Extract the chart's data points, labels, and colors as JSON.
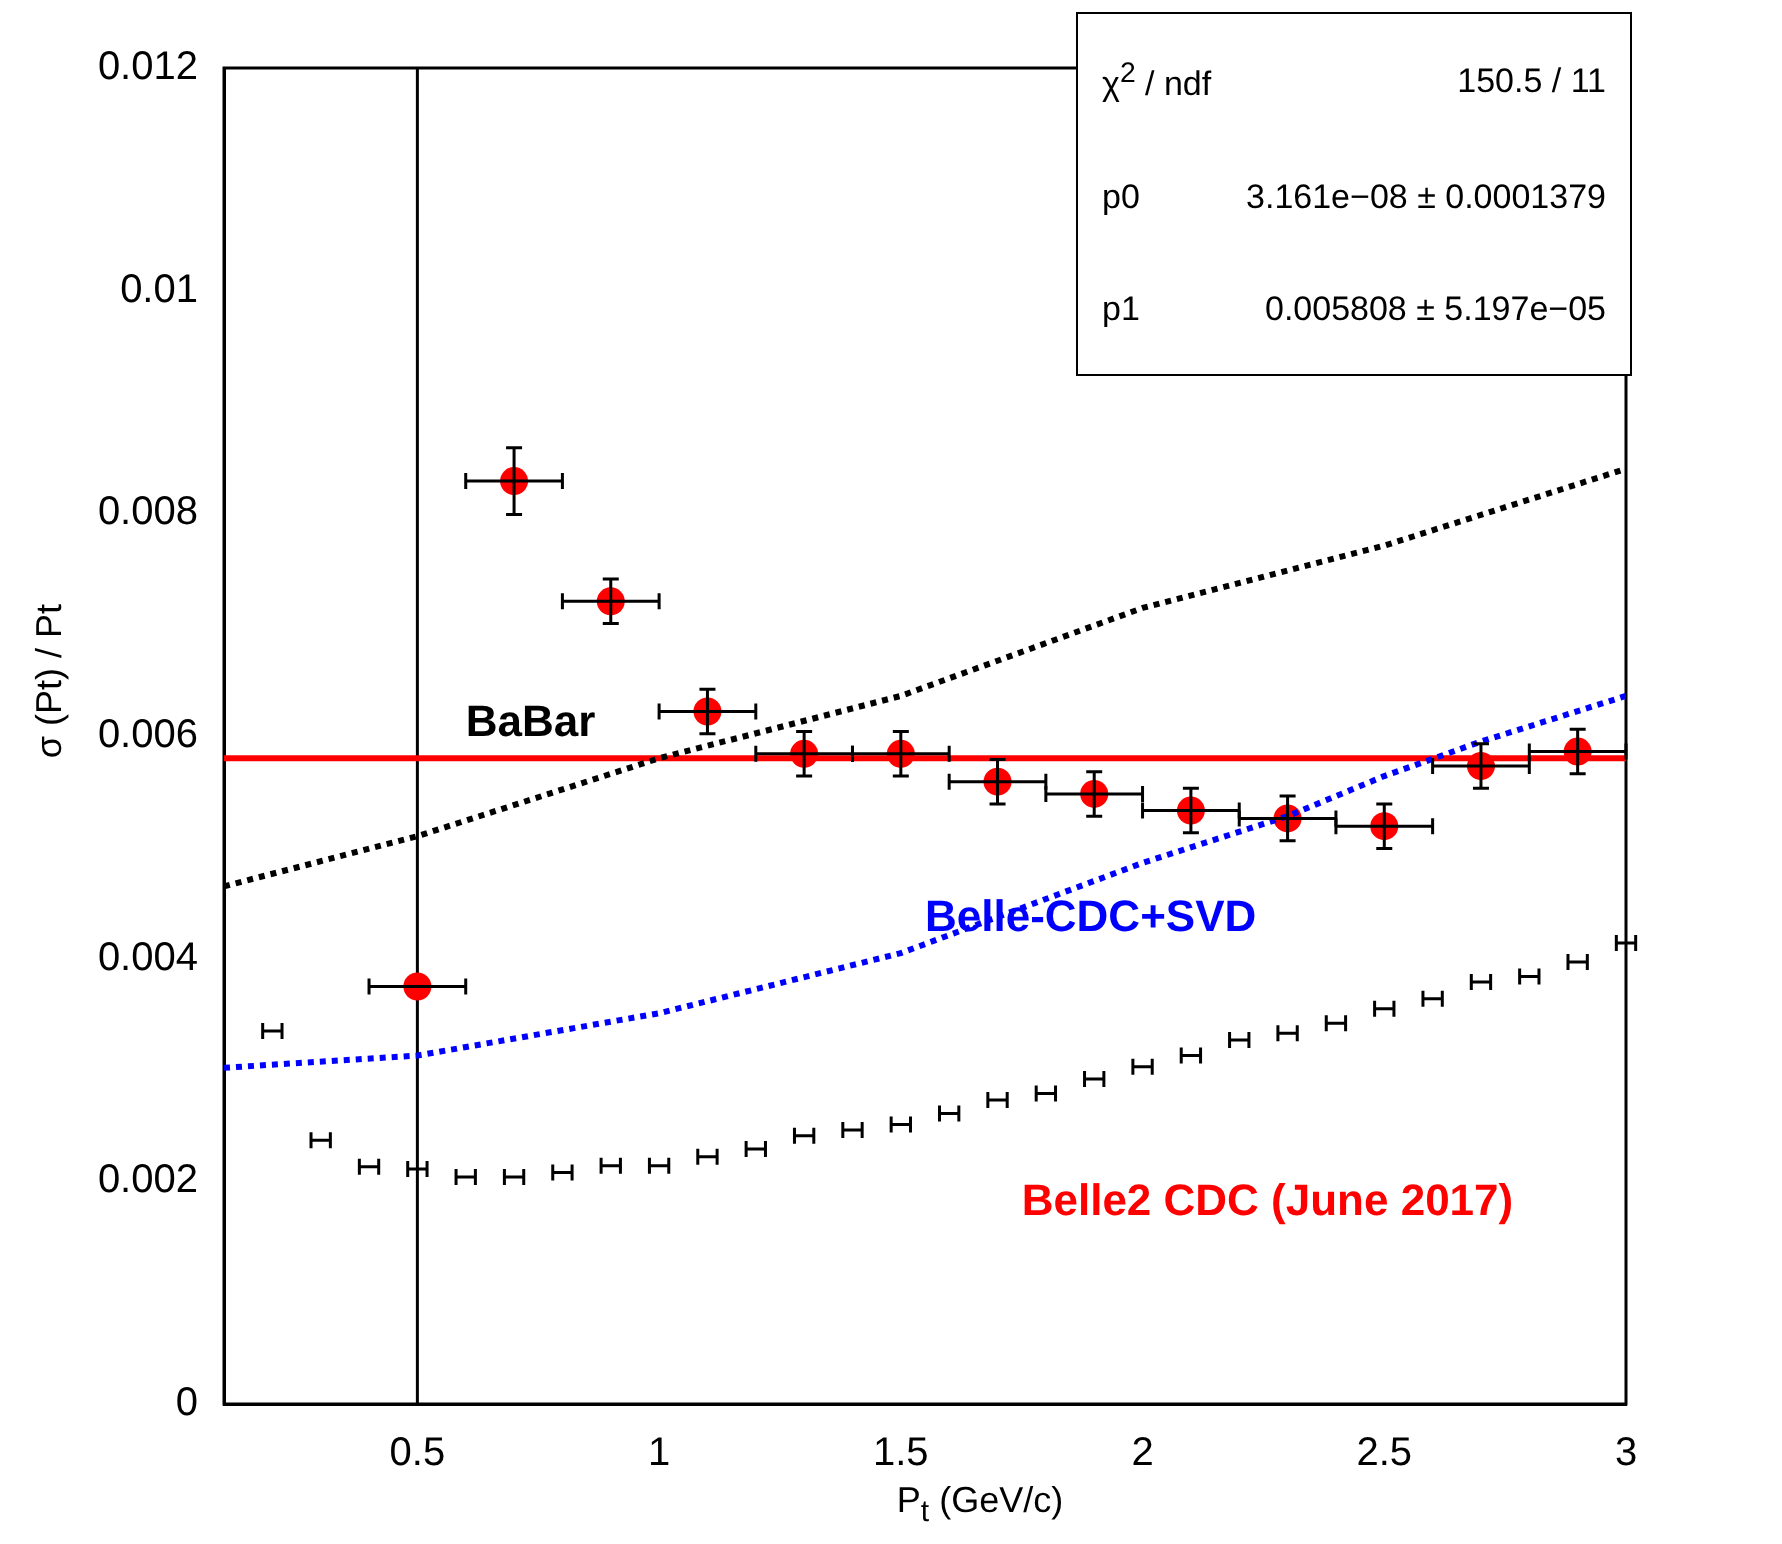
{
  "chart_data": {
    "type": "scatter",
    "xlabel": "P$_{t}$ (GeV/c)",
    "ylabel": "σ (Pt) / Pt",
    "xlim": [
      0.1,
      3.0
    ],
    "xticks": [
      0.5,
      1,
      1.5,
      2,
      2.5,
      3
    ],
    "ylim": [
      0,
      0.012
    ],
    "yticks": [
      0,
      0.002,
      0.004,
      0.006,
      0.008,
      0.01,
      0.012
    ],
    "grid": false,
    "legend": false,
    "series": [
      {
        "name": "BaBar",
        "type": "line",
        "color": "#000000",
        "line_style": "dotted",
        "marker": "none",
        "x": [
          0.1,
          0.5,
          1,
          1.5,
          2,
          2.5,
          3
        ],
        "values": [
          0.00465,
          0.0051,
          0.0058,
          0.00636,
          0.00715,
          0.00771,
          0.0084
        ]
      },
      {
        "name": "Belle-CDC+SVD",
        "type": "line",
        "color": "#0000ff",
        "line_style": "dotted",
        "marker": "none",
        "x": [
          0.1,
          0.5,
          1,
          1.5,
          2,
          2.3,
          2.5,
          2.7,
          3
        ],
        "values": [
          0.00302,
          0.00313,
          0.00351,
          0.00405,
          0.00486,
          0.00528,
          0.00564,
          0.00595,
          0.00636
        ]
      },
      {
        "type": "scatter",
        "color": "#000000",
        "x": [
          0.2,
          0.3,
          0.4,
          0.5,
          0.6,
          0.7,
          0.8,
          0.9,
          1.0,
          1.1,
          1.2,
          1.3,
          1.4,
          1.5,
          1.6,
          1.7,
          1.8,
          1.9,
          2.0,
          2.1,
          2.2,
          2.3,
          2.4,
          2.5,
          2.6,
          2.7,
          2.8,
          2.9,
          3.0
        ],
        "values": [
          0.00335,
          0.00237,
          0.00213,
          0.00211,
          0.00204,
          0.00204,
          0.00208,
          0.00214,
          0.00214,
          0.00222,
          0.00229,
          0.00241,
          0.00246,
          0.00251,
          0.00261,
          0.00273,
          0.00279,
          0.00292,
          0.00303,
          0.00313,
          0.00327,
          0.00333,
          0.00342,
          0.00355,
          0.00364,
          0.00379,
          0.00384,
          0.00397,
          0.00414
        ],
        "xerrors": [
          0.02,
          0.02,
          0.02,
          0.02,
          0.02,
          0.02,
          0.02,
          0.02,
          0.02,
          0.02,
          0.02,
          0.02,
          0.02,
          0.02,
          0.02,
          0.02,
          0.02,
          0.02,
          0.02,
          0.02,
          0.02,
          0.02,
          0.02,
          0.02,
          0.02,
          0.02,
          0.02,
          0.02,
          0.02
        ]
      },
      {
        "name": "Belle2 CDC (June 2017)",
        "type": "scatter",
        "color": "#ff0000",
        "marker": "circle",
        "x": [
          0.5,
          0.7,
          0.9,
          1.1,
          1.3,
          1.5,
          1.7,
          1.9,
          2.1,
          2.3,
          2.5,
          2.7,
          2.9
        ],
        "values": [
          0.00375,
          0.00829,
          0.00721,
          0.00622,
          0.00584,
          0.00584,
          0.00559,
          0.00548,
          0.00533,
          0.00526,
          0.00519,
          0.00573,
          0.00586
        ],
        "errors": [
          null,
          0.0003,
          0.0002,
          0.0002,
          0.0002,
          0.0002,
          0.0002,
          0.0002,
          0.0002,
          0.0002,
          0.0002,
          0.0002,
          0.0002
        ],
        "xerrors": [
          0.1,
          0.1,
          0.1,
          0.1,
          0.1,
          0.1,
          0.1,
          0.1,
          0.1,
          0.1,
          0.1,
          0.1,
          0.1
        ]
      },
      {
        "type": "line",
        "color": "#ff0000",
        "line_style": "solid",
        "marker": "none",
        "x": [
          0.1,
          3.0
        ],
        "values": [
          0.0058,
          0.0058
        ]
      }
    ],
    "ref_lines": [
      {
        "axis": "x",
        "value": 0.5,
        "color": "#000000",
        "line_style": "solid"
      }
    ],
    "annotations": [
      "χ$^{2}$ / ndf",
      "150.5 / 11",
      "p0",
      "3.161e−08 ± 0.0001379",
      "p1",
      "0.005808 ± 5.197e−05"
    ]
  }
}
